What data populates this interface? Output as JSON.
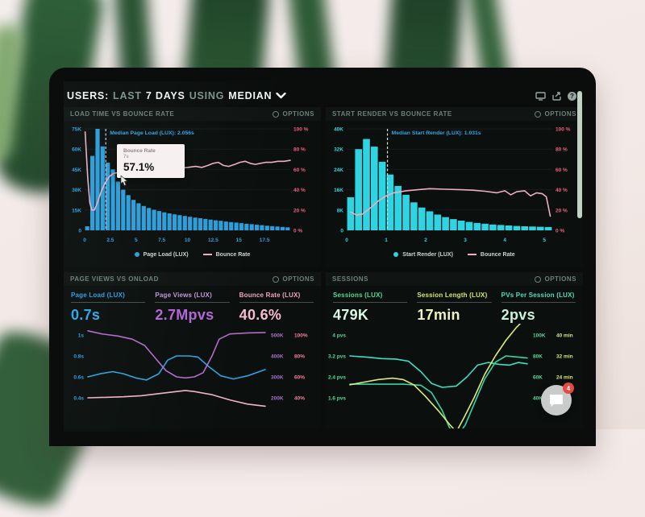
{
  "header": {
    "parts": [
      "USERS:",
      "LAST",
      "7 DAYS",
      "USING",
      "MEDIAN"
    ],
    "help_glyph": "?"
  },
  "panels": {
    "load_time": {
      "title": "LOAD TIME VS BOUNCE RATE",
      "options_label": "OPTIONS"
    },
    "start_render": {
      "title": "START RENDER VS BOUNCE RATE",
      "options_label": "OPTIONS"
    },
    "page_views": {
      "title": "PAGE VIEWS VS ONLOAD",
      "options_label": "OPTIONS",
      "metrics": [
        {
          "label": "Page Load (LUX)",
          "value": "0.7s",
          "label_color": "#2b9fe8",
          "value_color": "#2da8f0"
        },
        {
          "label": "Page Views (LUX)",
          "value": "2.7Mpvs",
          "label_color": "#c497dd",
          "value_color": "#b566d9"
        },
        {
          "label": "Bounce Rate (LUX)",
          "value": "40.6%",
          "label_color": "#f2a5bf",
          "value_color": "#f7bccd"
        }
      ]
    },
    "sessions": {
      "title": "SESSIONS",
      "options_label": "OPTIONS",
      "metrics": [
        {
          "label": "Sessions (LUX)",
          "value": "479K",
          "label_color": "#53dd98",
          "value_color": "#dcf7e2"
        },
        {
          "label": "Session Length (LUX)",
          "value": "17min",
          "label_color": "#d8e86d",
          "value_color": "#f0f4c3"
        },
        {
          "label": "PVs Per Session (LUX)",
          "value": "2pvs",
          "label_color": "#4de0b8",
          "value_color": "#c9f2dd"
        }
      ]
    }
  },
  "tooltip": {
    "label": "Bounce Rate",
    "sub": "7s",
    "value": "57.1%"
  },
  "chat": {
    "badge": "4"
  },
  "chart_data": [
    {
      "id": "load_time",
      "type": "bar+line",
      "title": "LOAD TIME VS BOUNCE RATE",
      "x_range": [
        0,
        20
      ],
      "x_ticks": [
        0,
        2.5,
        5,
        7.5,
        10,
        12.5,
        15,
        17.5
      ],
      "x_tick_color": "#2e9fe0",
      "y_left_ticks": [
        "75K",
        "60K",
        "45K",
        "30K",
        "15K",
        "0"
      ],
      "y_left_max": 75,
      "y_left_color": "#2e9fe0",
      "y_right_ticks": [
        "100 %",
        "80 %",
        "60 %",
        "40 %",
        "20 %",
        "0 %"
      ],
      "y_right_color": "#ef5f7e",
      "bars": {
        "color": "#2d9edb",
        "step": 0.5,
        "values": [
          3,
          55,
          75,
          62,
          50,
          45,
          36,
          30,
          26,
          22.5,
          20,
          18,
          16.5,
          15.2,
          14.2,
          13.3,
          12.5,
          11.8,
          11.2,
          10.6,
          10,
          9.4,
          8.9,
          8.4,
          7.9,
          7.4,
          7,
          6.5,
          6.1,
          5.7,
          5.3,
          4.9,
          4.5,
          4.1,
          3.8,
          3.4,
          3.1,
          2.8,
          2.5,
          2.2
        ]
      },
      "line": {
        "color": "#edafc0",
        "range": [
          0,
          100
        ],
        "points": [
          [
            0.05,
            97
          ],
          [
            0.3,
            52
          ],
          [
            0.5,
            27
          ],
          [
            0.7,
            20
          ],
          [
            0.95,
            20
          ],
          [
            1.2,
            26
          ],
          [
            1.6,
            38
          ],
          [
            2,
            47
          ],
          [
            2.4,
            53
          ],
          [
            2.8,
            56
          ],
          [
            3.3,
            57
          ],
          [
            3.9,
            58
          ],
          [
            4.6,
            58
          ],
          [
            5.2,
            59
          ],
          [
            6,
            60
          ],
          [
            7,
            60
          ],
          [
            8,
            61
          ],
          [
            9,
            61
          ],
          [
            10,
            62
          ],
          [
            10.8,
            63
          ],
          [
            11.4,
            62
          ],
          [
            12,
            64
          ],
          [
            12.5,
            66
          ],
          [
            13,
            67
          ],
          [
            13.5,
            64
          ],
          [
            14,
            63
          ],
          [
            14.6,
            65
          ],
          [
            15.1,
            67
          ],
          [
            15.6,
            68
          ],
          [
            16.1,
            66
          ],
          [
            16.6,
            65
          ],
          [
            17.1,
            66
          ],
          [
            17.6,
            67
          ],
          [
            18.2,
            67
          ],
          [
            18.8,
            68
          ],
          [
            19.4,
            68
          ],
          [
            20,
            69
          ]
        ]
      },
      "median": {
        "x": 2.056,
        "label": "Median Page Load (LUX): 2.056s",
        "line_color": "#b9d6e4",
        "label_color": "#2fa7e8"
      },
      "legend": [
        {
          "marker": "dot",
          "color": "#2d9edb",
          "label": "Page Load (LUX)"
        },
        {
          "marker": "line",
          "color": "#edafc0",
          "label": "Bounce Rate"
        }
      ]
    },
    {
      "id": "start_render",
      "type": "bar+line",
      "title": "START RENDER VS BOUNCE RATE",
      "x_range": [
        0,
        5.2
      ],
      "x_ticks": [
        0,
        1,
        2,
        3,
        4,
        5
      ],
      "x_tick_color": "#3cd0dd",
      "y_left_ticks": [
        "40K",
        "32K",
        "24K",
        "16K",
        "8K",
        "0"
      ],
      "y_left_max": 40,
      "y_left_color": "#3cd0dd",
      "y_right_ticks": [
        "100 %",
        "80 %",
        "60 %",
        "40 %",
        "20 %",
        "0 %"
      ],
      "y_right_color": "#ef5f7e",
      "bars": {
        "color": "#2fd4e2",
        "step": 0.2,
        "values": [
          13,
          32,
          36,
          33,
          27,
          22,
          17.5,
          14,
          11,
          9,
          7.5,
          6.2,
          5.2,
          4.4,
          3.8,
          3.3,
          2.9,
          2.6,
          2.3,
          2.1,
          1.9,
          1.7,
          1.6,
          1.5,
          1.4,
          1.3
        ]
      },
      "line": {
        "color": "#edafc0",
        "range": [
          0,
          100
        ],
        "points": [
          [
            0.1,
            18
          ],
          [
            0.25,
            15
          ],
          [
            0.4,
            16
          ],
          [
            0.6,
            22
          ],
          [
            0.8,
            29
          ],
          [
            1,
            34
          ],
          [
            1.2,
            37
          ],
          [
            1.5,
            39
          ],
          [
            1.8,
            40
          ],
          [
            2.1,
            41
          ],
          [
            2.5,
            40.5
          ],
          [
            2.9,
            40
          ],
          [
            3.2,
            39.5
          ],
          [
            3.5,
            38.5
          ],
          [
            3.8,
            37
          ],
          [
            4,
            39
          ],
          [
            4.15,
            35
          ],
          [
            4.3,
            38
          ],
          [
            4.5,
            39
          ],
          [
            4.65,
            34
          ],
          [
            4.8,
            37
          ],
          [
            4.95,
            36
          ],
          [
            5.05,
            33
          ],
          [
            5.15,
            14
          ]
        ]
      },
      "median": {
        "x": 1.031,
        "label": "Median Start Render (LUX): 1.031s",
        "line_color": "#d9e4e2",
        "label_color": "#2fa7e8"
      },
      "legend": [
        {
          "marker": "dot",
          "color": "#2fd4e2",
          "label": "Start Render (LUX)"
        },
        {
          "marker": "line",
          "color": "#edafc0",
          "label": "Bounce Rate"
        }
      ]
    },
    {
      "id": "onload",
      "type": "multi-line",
      "title": "PAGE VIEWS VS ONLOAD",
      "rows": [
        [
          "1s",
          "500K",
          "100%"
        ],
        [
          "0.8s",
          "400K",
          "80%"
        ],
        [
          "0.6s",
          "300K",
          "60%"
        ],
        [
          "0.4s",
          "200K",
          "40%"
        ]
      ],
      "row_colors": [
        "#2e9fe0",
        "#a873c9",
        "#f0809a"
      ],
      "series": [
        {
          "name": "Page Load (s)",
          "color": "#2fa3e0",
          "range": [
            0.4,
            1
          ],
          "points": [
            [
              0,
              0.6
            ],
            [
              0.07,
              0.63
            ],
            [
              0.14,
              0.65
            ],
            [
              0.2,
              0.63
            ],
            [
              0.27,
              0.59
            ],
            [
              0.33,
              0.57
            ],
            [
              0.4,
              0.63
            ],
            [
              0.45,
              0.76
            ],
            [
              0.5,
              0.8
            ],
            [
              0.57,
              0.8
            ],
            [
              0.62,
              0.79
            ],
            [
              0.68,
              0.7
            ],
            [
              0.75,
              0.61
            ],
            [
              0.82,
              0.58
            ],
            [
              0.9,
              0.61
            ],
            [
              1,
              0.67
            ]
          ]
        },
        {
          "name": "Page Views (K)",
          "color": "#b26bc9",
          "range": [
            200,
            500
          ],
          "points": [
            [
              0,
              520
            ],
            [
              0.08,
              505
            ],
            [
              0.17,
              495
            ],
            [
              0.25,
              480
            ],
            [
              0.32,
              450
            ],
            [
              0.38,
              390
            ],
            [
              0.44,
              330
            ],
            [
              0.5,
              300
            ],
            [
              0.55,
              295
            ],
            [
              0.6,
              300
            ],
            [
              0.65,
              320
            ],
            [
              0.7,
              400
            ],
            [
              0.74,
              480
            ],
            [
              0.8,
              505
            ],
            [
              0.9,
              510
            ],
            [
              1,
              512
            ]
          ]
        },
        {
          "name": "Bounce Rate (%)",
          "color": "#f2b3c4",
          "range": [
            40,
            100
          ],
          "points": [
            [
              0,
              40
            ],
            [
              0.1,
              40.5
            ],
            [
              0.2,
              41
            ],
            [
              0.3,
              42
            ],
            [
              0.4,
              44
            ],
            [
              0.5,
              46
            ],
            [
              0.55,
              47
            ],
            [
              0.6,
              46
            ],
            [
              0.7,
              43
            ],
            [
              0.8,
              38
            ],
            [
              0.9,
              34
            ],
            [
              1,
              32
            ]
          ]
        }
      ]
    },
    {
      "id": "sessions",
      "type": "multi-line",
      "title": "SESSIONS",
      "rows": [
        [
          "4 pvs",
          "100K",
          "40 min"
        ],
        [
          "3.2 pvs",
          "80K",
          "32 min"
        ],
        [
          "2.4 pvs",
          "60K",
          "24 min"
        ],
        [
          "1.6 pvs",
          "40K",
          ""
        ]
      ],
      "row_colors": [
        "#58da9a",
        "#58da9a",
        "#d9e87c"
      ],
      "series": [
        {
          "name": "PVs Per Session",
          "color": "#3fe0c0",
          "range": [
            1.6,
            4
          ],
          "points": [
            [
              0,
              3.2
            ],
            [
              0.1,
              3.15
            ],
            [
              0.18,
              3.1
            ],
            [
              0.26,
              3.08
            ],
            [
              0.33,
              3
            ],
            [
              0.4,
              2.6
            ],
            [
              0.46,
              2.15
            ],
            [
              0.52,
              2
            ],
            [
              0.6,
              2.05
            ],
            [
              0.66,
              2.4
            ],
            [
              0.72,
              2.85
            ],
            [
              0.78,
              2.95
            ],
            [
              0.84,
              2.88
            ],
            [
              0.9,
              2.85
            ],
            [
              0.95,
              2.95
            ],
            [
              1,
              2.9
            ]
          ]
        },
        {
          "name": "Sessions (K)",
          "color": "#35d6a4",
          "range": [
            40,
            100
          ],
          "points": [
            [
              0,
              53
            ],
            [
              0.1,
              53
            ],
            [
              0.2,
              53
            ],
            [
              0.3,
              53
            ],
            [
              0.4,
              52
            ],
            [
              0.46,
              45
            ],
            [
              0.52,
              28
            ],
            [
              0.56,
              12
            ],
            [
              0.6,
              2
            ],
            [
              0.65,
              14
            ],
            [
              0.7,
              34
            ],
            [
              0.76,
              58
            ],
            [
              0.82,
              74
            ],
            [
              0.88,
              80
            ],
            [
              1,
              78
            ]
          ]
        },
        {
          "name": "Session Length (min)",
          "color": "#dcea7c",
          "range": [
            16,
            40
          ],
          "points": [
            [
              0,
              21
            ],
            [
              0.08,
              22
            ],
            [
              0.16,
              23
            ],
            [
              0.24,
              23.5
            ],
            [
              0.3,
              23
            ],
            [
              0.36,
              21
            ],
            [
              0.42,
              17
            ],
            [
              0.5,
              11
            ],
            [
              0.56,
              6
            ],
            [
              0.6,
              3
            ],
            [
              0.64,
              8
            ],
            [
              0.7,
              16
            ],
            [
              0.76,
              25
            ],
            [
              0.82,
              32
            ],
            [
              0.88,
              38
            ],
            [
              0.94,
              43
            ],
            [
              1,
              47
            ]
          ]
        }
      ]
    }
  ]
}
